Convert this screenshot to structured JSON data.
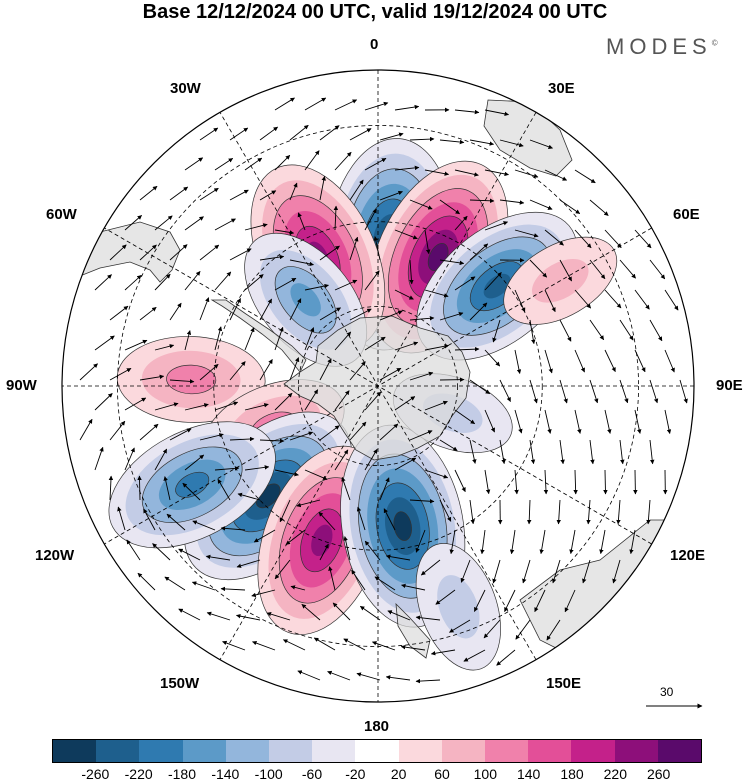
{
  "title": "Base 12/12/2024 00 UTC, valid 19/12/2024 00 UTC",
  "brand": "MODES",
  "brand_mark": "©",
  "longitude_labels": {
    "n0": "0",
    "e30": "30E",
    "e60": "60E",
    "e90": "90E",
    "e120": "120E",
    "e150": "150E",
    "s180": "180",
    "w150": "150W",
    "w120": "120W",
    "w90": "90W",
    "w60": "60W",
    "w30": "30W"
  },
  "reference_vector": "30",
  "colorbar": {
    "colors": [
      "#0e3a5c",
      "#1e5f8d",
      "#2f7ab0",
      "#5c9ac8",
      "#93b6dc",
      "#c3cce6",
      "#e8e6f2",
      "#ffffff",
      "#fbd9dd",
      "#f5b4c2",
      "#f081ab",
      "#e34f98",
      "#c4218a",
      "#8d0f7a",
      "#5a0a6b"
    ],
    "tick_labels": [
      "-260",
      "-220",
      "-180",
      "-140",
      "-100",
      "-60",
      "-20",
      "20",
      "60",
      "100",
      "140",
      "180",
      "220",
      "260"
    ]
  },
  "map": {
    "projection": "south polar stereographic",
    "anomaly_centers": [
      {
        "lon": 5,
        "lat": -55,
        "sign": "negative",
        "strength": 280
      },
      {
        "lon": 25,
        "lat": -55,
        "sign": "positive",
        "strength": 260
      },
      {
        "lon": 50,
        "lat": -52,
        "sign": "negative",
        "strength": 220
      },
      {
        "lon": -25,
        "lat": -55,
        "sign": "positive",
        "strength": 240
      },
      {
        "lon": -40,
        "lat": -62,
        "sign": "negative",
        "strength": 140
      },
      {
        "lon": -88,
        "lat": -45,
        "sign": "positive",
        "strength": 120
      },
      {
        "lon": -112,
        "lat": -62,
        "sign": "positive",
        "strength": 120
      },
      {
        "lon": -135,
        "lat": -52,
        "sign": "negative",
        "strength": 260
      },
      {
        "lon": -118,
        "lat": -40,
        "sign": "negative",
        "strength": 200
      },
      {
        "lon": -160,
        "lat": -50,
        "sign": "positive",
        "strength": 240
      },
      {
        "lon": 170,
        "lat": -55,
        "sign": "negative",
        "strength": 260
      },
      {
        "lon": 160,
        "lat": -35,
        "sign": "negative",
        "strength": 80
      },
      {
        "lon": 60,
        "lat": -40,
        "sign": "positive",
        "strength": 60
      },
      {
        "lon": 110,
        "lat": -70,
        "sign": "negative",
        "strength": 60
      }
    ]
  }
}
